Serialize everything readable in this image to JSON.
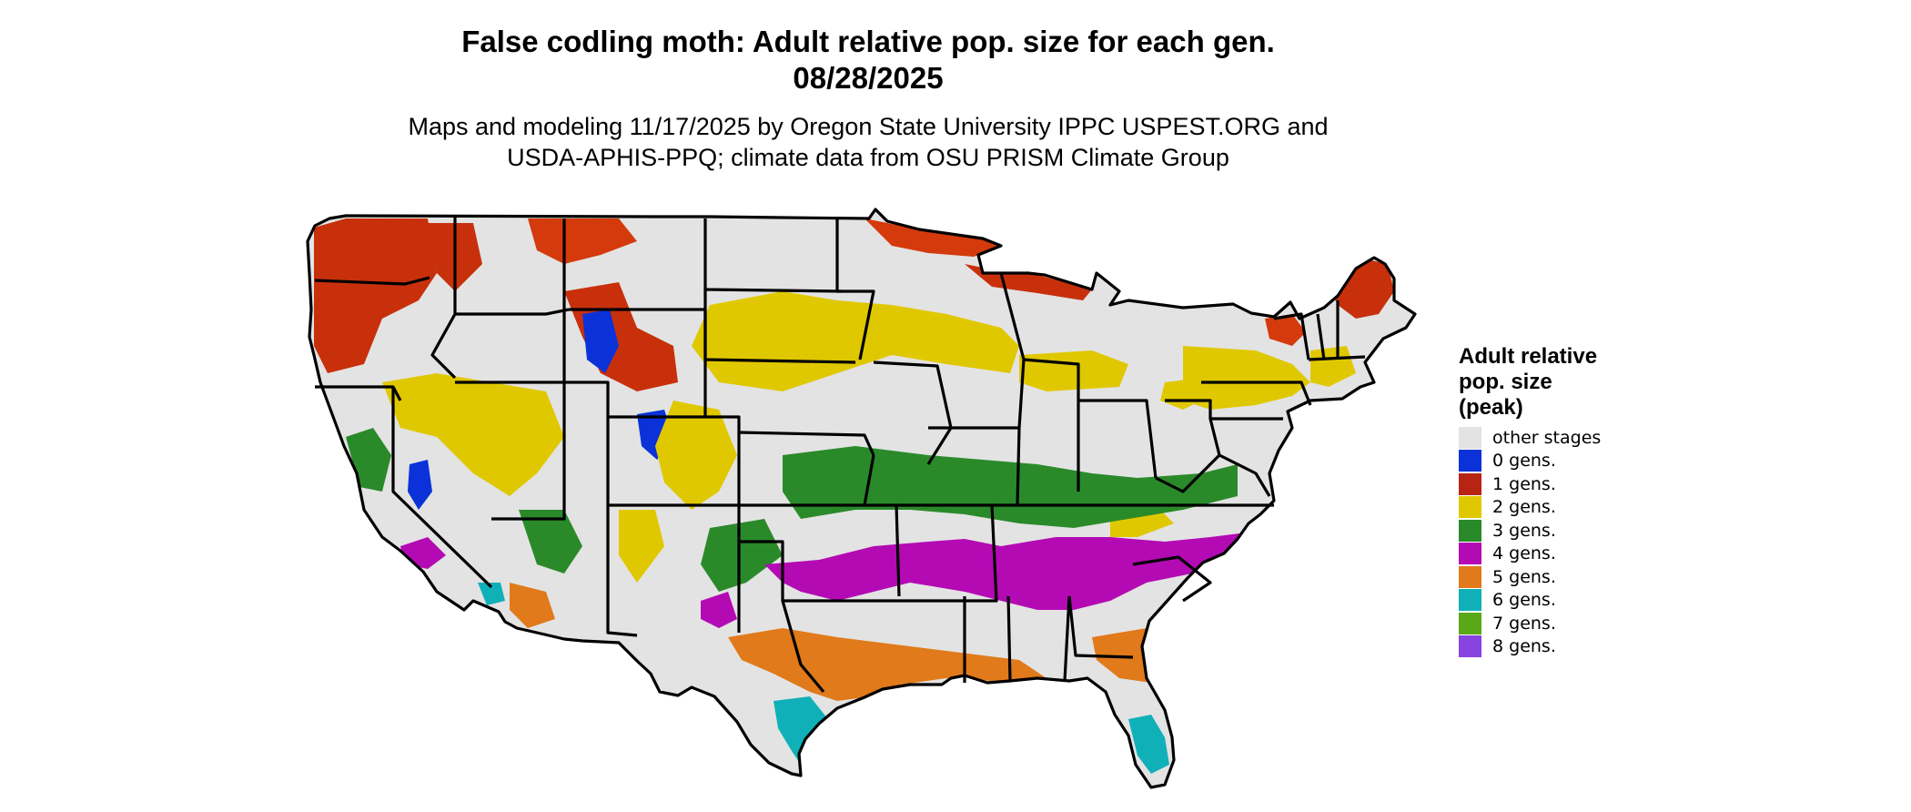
{
  "title": {
    "line1": "False codling moth: Adult relative pop. size for each gen.",
    "line2": "08/28/2025"
  },
  "subtitle": {
    "line1": "Maps and modeling 11/17/2025 by Oregon State University IPPC USPEST.ORG and",
    "line2": "USDA-APHIS-PPQ; climate data from OSU PRISM Climate Group"
  },
  "map": {
    "region": "Contiguous United States",
    "base_color": "#e3e3e3",
    "border_color": "#000000"
  },
  "legend": {
    "title_lines": [
      "Adult relative",
      "pop. size",
      "(peak)"
    ],
    "items": [
      {
        "label": "other stages",
        "color": "#e3e3e3"
      },
      {
        "label": "0 gens.",
        "color": "#0a32d8"
      },
      {
        "label": "1 gens.",
        "color": "#b82414"
      },
      {
        "label": "2 gens.",
        "color": "#e0c800"
      },
      {
        "label": "3 gens.",
        "color": "#2a8a2a"
      },
      {
        "label": "4 gens.",
        "color": "#b40ab4"
      },
      {
        "label": "5 gens.",
        "color": "#e07a1a"
      },
      {
        "label": "6 gens.",
        "color": "#10b0b8"
      },
      {
        "label": "7 gens.",
        "color": "#5aa818"
      },
      {
        "label": "8 gens.",
        "color": "#8844e0"
      }
    ]
  }
}
